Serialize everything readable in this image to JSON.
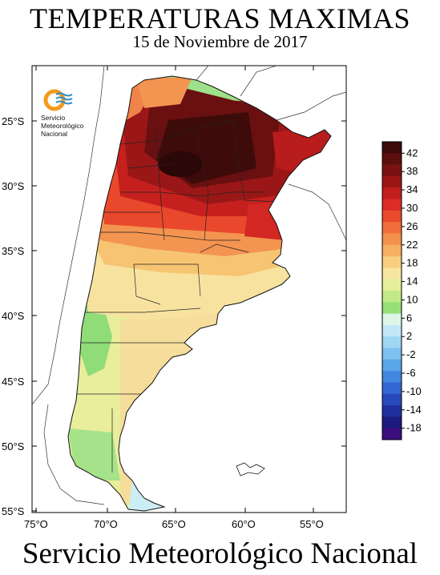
{
  "title": "TEMPERATURAS MAXIMAS",
  "subtitle": "15 de Noviembre de 2017",
  "footer": "Servicio Meteorológico Nacional",
  "logo": {
    "icon": "smn-logo-icon",
    "lines": [
      "Servicio",
      "Meteorológico",
      "Nacional"
    ],
    "colors": {
      "ring": "#f39a1e",
      "waves": "#2a8fd0"
    }
  },
  "axes": {
    "lat_labels": [
      "25°S",
      "30°S",
      "35°S",
      "40°S",
      "45°S",
      "50°S",
      "55°S"
    ],
    "lon_labels": [
      "75°O",
      "70°O",
      "65°O",
      "60°O",
      "55°O"
    ]
  },
  "legend": {
    "labels": [
      "42",
      "38",
      "34",
      "30",
      "26",
      "22",
      "18",
      "14",
      "10",
      "6",
      "2",
      "-2",
      "-6",
      "-10",
      "-14",
      "-18"
    ],
    "colors": [
      "#3b0a0a",
      "#5c0f0f",
      "#7a1212",
      "#9b1717",
      "#c21e1e",
      "#dd2c26",
      "#ea4b2d",
      "#f06e3a",
      "#f3904c",
      "#f6b063",
      "#f8cf80",
      "#f7e6a2",
      "#e6ef9a",
      "#c3e987",
      "#96df76",
      "#dff5e9",
      "#c2e8f7",
      "#9fd6f4",
      "#7cc1ef",
      "#5aa6e8",
      "#4386df",
      "#3467d2",
      "#2849bb",
      "#1f2f9e",
      "#1c1a7e",
      "#3c0e7e"
    ]
  }
}
